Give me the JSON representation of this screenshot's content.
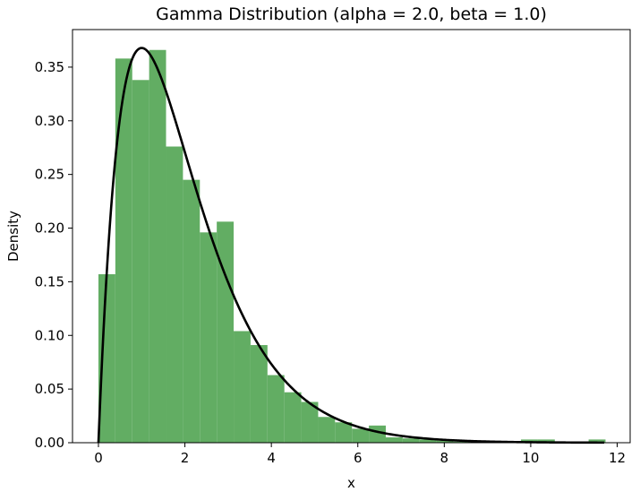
{
  "chart_data": {
    "type": "bar",
    "title": "Gamma Distribution (alpha = 2.0, beta = 1.0)",
    "xlabel": "x",
    "ylabel": "Density",
    "xlim": [
      -0.6,
      12.3
    ],
    "ylim": [
      0,
      0.385
    ],
    "xticks": [
      0,
      2,
      4,
      6,
      8,
      10,
      12
    ],
    "yticks": [
      0.0,
      0.05,
      0.1,
      0.15,
      0.2,
      0.25,
      0.3,
      0.35
    ],
    "grid": false,
    "legend": "none",
    "histogram": {
      "color": "#62ad63",
      "bin_start": 0.0,
      "bin_width": 0.391,
      "heights": [
        0.157,
        0.358,
        0.338,
        0.366,
        0.276,
        0.245,
        0.196,
        0.206,
        0.104,
        0.091,
        0.063,
        0.047,
        0.038,
        0.024,
        0.019,
        0.013,
        0.016,
        0.005,
        0.004,
        0.003,
        0.002,
        0.001,
        0.001,
        0.0,
        0.0,
        0.003,
        0.003,
        0.0,
        0.0,
        0.003
      ]
    },
    "series": [
      {
        "type": "line",
        "color": "#000000",
        "function": "gamma_pdf",
        "alpha": 2.0,
        "beta": 1.0,
        "x_range": [
          0,
          11.7
        ]
      }
    ]
  }
}
